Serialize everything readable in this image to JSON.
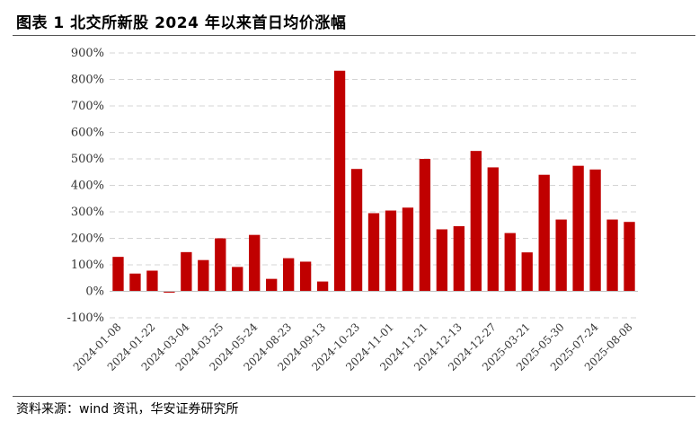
{
  "header": {
    "title": "图表 1 北交所新股 2024 年以来首日均价涨幅"
  },
  "footer": {
    "source": "资料来源：wind 资讯，华安证券研究所"
  },
  "chart_data": {
    "type": "bar",
    "title": "图表 1 北交所新股 2024 年以来首日均价涨幅",
    "xlabel": "",
    "ylabel": "",
    "ylim": [
      -100,
      900
    ],
    "yticks": [
      -100,
      0,
      100,
      200,
      300,
      400,
      500,
      600,
      700,
      800,
      900
    ],
    "ytick_labels": [
      "-100%",
      "0%",
      "100%",
      "200%",
      "300%",
      "400%",
      "500%",
      "600%",
      "700%",
      "800%",
      "900%"
    ],
    "x_tick_labels": [
      "2024-01-08",
      "2024-01-22",
      "2024-03-04",
      "2024-03-25",
      "2024-05-24",
      "2024-08-23",
      "2024-09-13",
      "2024-10-23",
      "2024-11-01",
      "2024-11-21",
      "2024-12-13",
      "2024-12-27",
      "2025-03-21",
      "2025-05-30",
      "2025-07-24",
      "2025-08-08"
    ],
    "x_tick_every": 2,
    "grid": true,
    "bar_color": "#C00000",
    "values": [
      130,
      67,
      78,
      -5,
      148,
      118,
      200,
      92,
      213,
      47,
      125,
      112,
      37,
      833,
      462,
      295,
      305,
      316,
      500,
      234,
      246,
      530,
      468,
      220,
      147,
      440,
      271,
      474,
      460,
      271,
      262
    ]
  }
}
